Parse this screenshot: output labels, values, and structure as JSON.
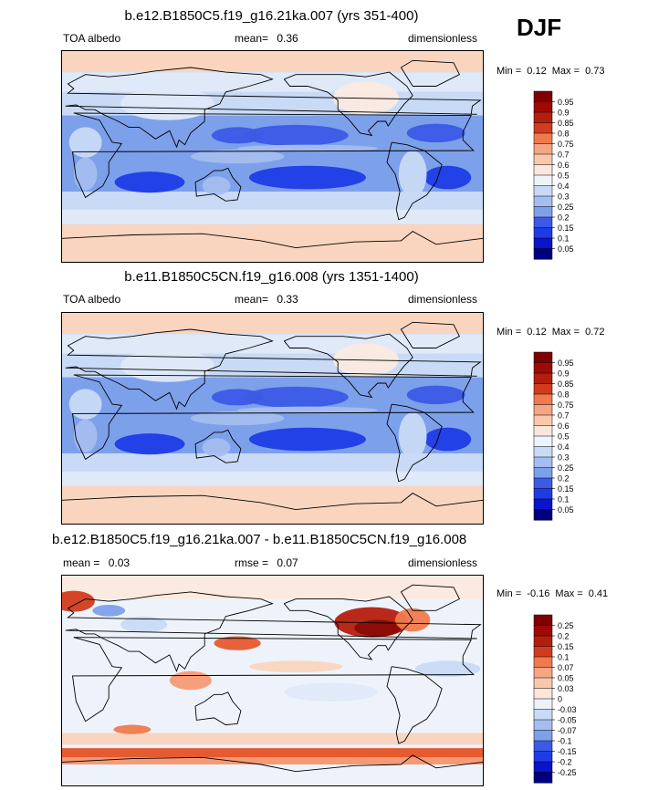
{
  "season": "DJF",
  "colors": {
    "cool": [
      "#00007f",
      "#0a14c8",
      "#1e3ce6",
      "#3c5ae6",
      "#5a7ee6",
      "#7da0eb",
      "#a5bef0",
      "#c8daf5",
      "#dfe9f8"
    ],
    "warm": [
      "#fbeae0",
      "#f9d5c0",
      "#f7b99a",
      "#f49a75",
      "#f07a4e",
      "#e65a30",
      "#d23c1e",
      "#b41e0f",
      "#8c0a05"
    ],
    "seq": [
      "#00007f",
      "#0a14c8",
      "#1e3ce6",
      "#3c5ae6",
      "#5a7ee6",
      "#7da0eb",
      "#a5bef0",
      "#c8daf5",
      "#eef3fb",
      "#fbe6dc",
      "#f9c8ac",
      "#f4a582",
      "#f07a4e",
      "#e65a30",
      "#d23c1e",
      "#b41e0f",
      "#a00a05",
      "#7f0000"
    ],
    "land": "#000000"
  },
  "chart_data": [
    {
      "type": "heatmap",
      "title": "b.e12.B1850C5.f19_g16.21ka.007 (yrs 351-400)",
      "variable": "TOA albedo",
      "mean_label": "mean=",
      "mean": "0.36",
      "units": "dimensionless",
      "min_label": "Min =",
      "min": "0.12",
      "max_label": "Max =",
      "max": "0.73",
      "colorbar_levels": [
        "0.95",
        "0.9",
        "0.85",
        "0.8",
        "0.75",
        "0.7",
        "0.6",
        "0.5",
        "0.4",
        "0.3",
        "0.25",
        "0.2",
        "0.15",
        "0.1",
        "0.05"
      ]
    },
    {
      "type": "heatmap",
      "title": "b.e11.B1850C5CN.f19_g16.008 (yrs 1351-1400)",
      "variable": "TOA albedo",
      "mean_label": "mean=",
      "mean": "0.33",
      "units": "dimensionless",
      "min_label": "Min =",
      "min": "0.12",
      "max_label": "Max =",
      "max": "0.72",
      "colorbar_levels": [
        "0.95",
        "0.9",
        "0.85",
        "0.8",
        "0.75",
        "0.7",
        "0.6",
        "0.5",
        "0.4",
        "0.3",
        "0.25",
        "0.2",
        "0.15",
        "0.1",
        "0.05"
      ]
    },
    {
      "type": "heatmap",
      "title": "b.e12.B1850C5.f19_g16.21ka.007 - b.e11.B1850C5CN.f19_g16.008",
      "mean_label": "mean =",
      "mean": "0.03",
      "rmse_label": "rmse =",
      "rmse": "0.07",
      "units": "dimensionless",
      "min_label": "Min =",
      "min": "-0.16",
      "max_label": "Max =",
      "max": "0.41",
      "colorbar_levels": [
        "0.25",
        "0.2",
        "0.15",
        "0.1",
        "0.07",
        "0.05",
        "0.03",
        "0",
        "-0.03",
        "-0.05",
        "-0.07",
        "-0.1",
        "-0.15",
        "-0.2",
        "-0.25"
      ]
    }
  ]
}
